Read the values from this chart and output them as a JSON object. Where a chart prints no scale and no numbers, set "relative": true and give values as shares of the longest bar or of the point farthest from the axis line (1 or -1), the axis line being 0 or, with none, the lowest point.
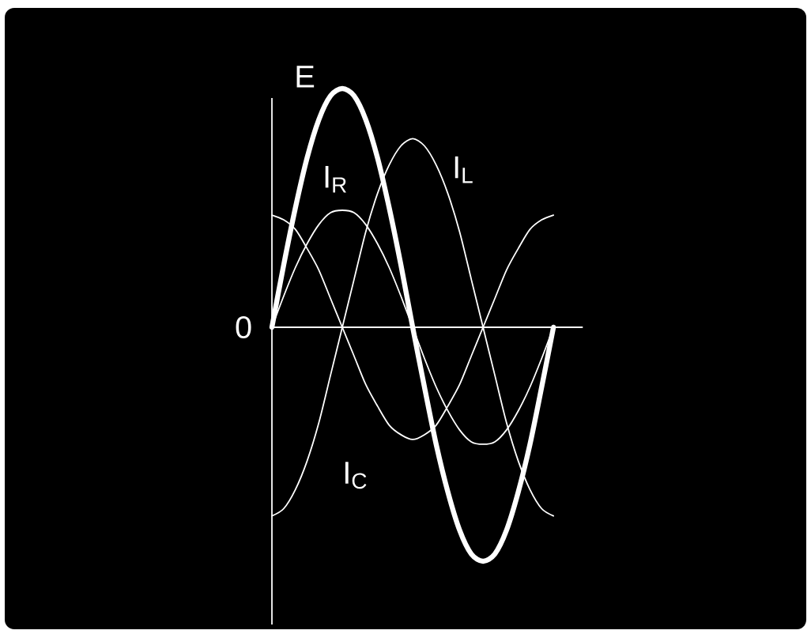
{
  "chart_data": {
    "type": "line",
    "relative": true,
    "categories": [
      null,
      null,
      null,
      null,
      null,
      null,
      null,
      null,
      null,
      null,
      null,
      null,
      null,
      null,
      null,
      null,
      null,
      null,
      null,
      null,
      null,
      null,
      null,
      null,
      null
    ],
    "series": [
      {
        "name": "E",
        "color": "#ffffff",
        "values": [
          0,
          0.26,
          0.5,
          0.71,
          0.87,
          0.97,
          1,
          0.97,
          0.87,
          0.71,
          0.5,
          0.26,
          0,
          -0.25,
          -0.49,
          -0.69,
          -0.85,
          -0.95,
          -0.98,
          -0.95,
          -0.85,
          -0.69,
          -0.49,
          -0.25,
          0
        ]
      },
      {
        "name": "I$_{R}$",
        "color": "#ffffff",
        "values": [
          0,
          0.13,
          0.25,
          0.35,
          0.43,
          0.48,
          0.49,
          0.48,
          0.43,
          0.35,
          0.25,
          0.13,
          0,
          -0.13,
          -0.25,
          -0.35,
          -0.43,
          -0.48,
          -0.49,
          -0.48,
          -0.43,
          -0.35,
          -0.25,
          -0.13,
          0
        ]
      },
      {
        "name": "I$_{L}$",
        "color": "#ffffff",
        "values": [
          -0.79,
          -0.76,
          -0.68,
          -0.56,
          -0.4,
          -0.2,
          0,
          0.2,
          0.4,
          0.56,
          0.68,
          0.76,
          0.79,
          0.76,
          0.68,
          0.56,
          0.4,
          0.2,
          0,
          -0.2,
          -0.4,
          -0.56,
          -0.68,
          -0.76,
          -0.79
        ]
      },
      {
        "name": "I$_{C}$",
        "color": "#ffffff",
        "values": [
          0.47,
          0.45,
          0.41,
          0.33,
          0.24,
          0.12,
          0,
          -0.12,
          -0.24,
          -0.33,
          -0.41,
          -0.45,
          -0.47,
          -0.45,
          -0.41,
          -0.33,
          -0.24,
          -0.12,
          0,
          0.12,
          0.24,
          0.33,
          0.41,
          0.45,
          0.47
        ]
      }
    ],
    "annotations": [
      "0"
    ]
  }
}
